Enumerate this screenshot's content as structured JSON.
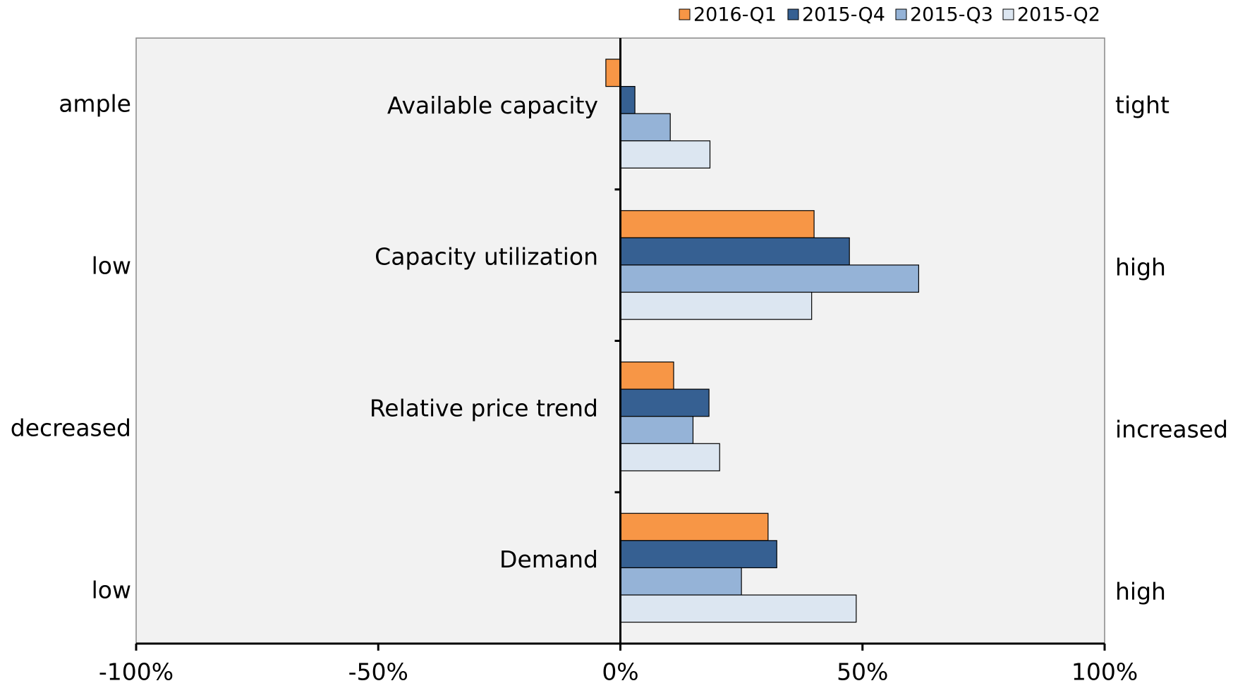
{
  "chart_data": {
    "type": "bar",
    "orientation": "horizontal",
    "categories": [
      "Available capacity",
      "Capacity utilization",
      "Relative price trend",
      "Demand"
    ],
    "left_labels": [
      "ample",
      "low",
      "decreased",
      "low"
    ],
    "right_labels": [
      "tight",
      "high",
      "increased",
      "high"
    ],
    "series": [
      {
        "name": "2016-Q1",
        "color": "#f79646",
        "values": [
          -3,
          40,
          11,
          30.5
        ]
      },
      {
        "name": "2015-Q4",
        "color": "#366092",
        "values": [
          3,
          47.3,
          18.3,
          32.3
        ]
      },
      {
        "name": "2015-Q3",
        "color": "#95b3d7",
        "values": [
          10.3,
          61.6,
          15,
          25
        ]
      },
      {
        "name": "2015-Q2",
        "color": "#dce6f1",
        "values": [
          18.5,
          39.5,
          20.5,
          48.7
        ]
      }
    ],
    "xlim": [
      -100,
      100
    ],
    "xticks": [
      {
        "value": -100,
        "label": "-100%"
      },
      {
        "value": -50,
        "label": "-50%"
      },
      {
        "value": 0,
        "label": "0%"
      },
      {
        "value": 50,
        "label": "50%"
      },
      {
        "value": 100,
        "label": "100%"
      }
    ],
    "legend": "top-right",
    "grid": false
  }
}
